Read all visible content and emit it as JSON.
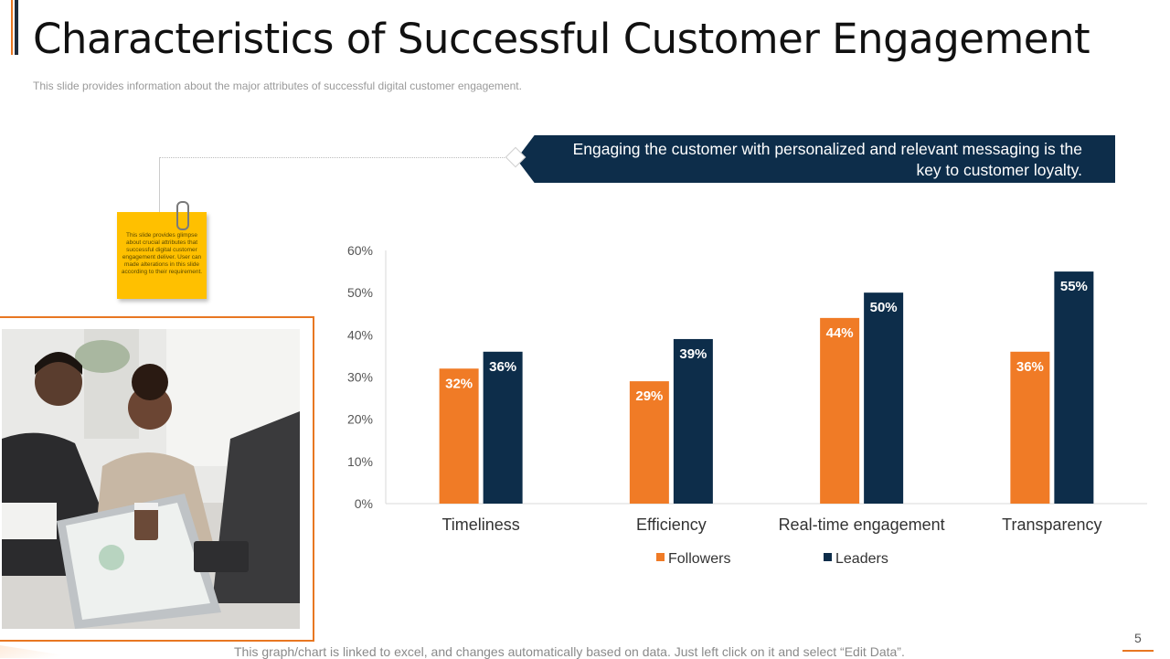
{
  "slide": {
    "title": "Characteristics of Successful Customer Engagement",
    "subtitle": "This slide provides  information  about the major attributes of successful digital customer engagement.",
    "banner_text": "Engaging the customer with personalized and relevant messaging is the key to customer loyalty.",
    "sticky_note": "This slide provides glimpse about crucial attributes that successful digital customer engagement deliver. User can made alterations in this slide according to their requirement.",
    "footer": "This graph/chart is linked to excel, and changes automatically based on data. Just left click on it and select “Edit Data”.",
    "page_number": "5"
  },
  "colors": {
    "accent": "#e87722",
    "navy": "#0d2d4a",
    "sticky": "#ffc000"
  },
  "chart_data": {
    "type": "bar",
    "title": "",
    "xlabel": "",
    "ylabel": "",
    "categories": [
      "Timeliness",
      "Efficiency",
      "Real-time engagement",
      "Transparency"
    ],
    "series": [
      {
        "name": "Followers",
        "values": [
          32,
          29,
          44,
          36
        ],
        "color": "#f07b26"
      },
      {
        "name": "Leaders",
        "values": [
          36,
          39,
          50,
          55
        ],
        "color": "#0d2d4a"
      }
    ],
    "ylim": [
      0,
      60
    ],
    "yticks": [
      "0%",
      "10%",
      "20%",
      "30%",
      "40%",
      "50%",
      "60%"
    ],
    "value_labels": [
      [
        "32%",
        "29%",
        "44%",
        "36%"
      ],
      [
        "36%",
        "39%",
        "50%",
        "55%"
      ]
    ],
    "grid": false,
    "legend_position": "bottom"
  }
}
